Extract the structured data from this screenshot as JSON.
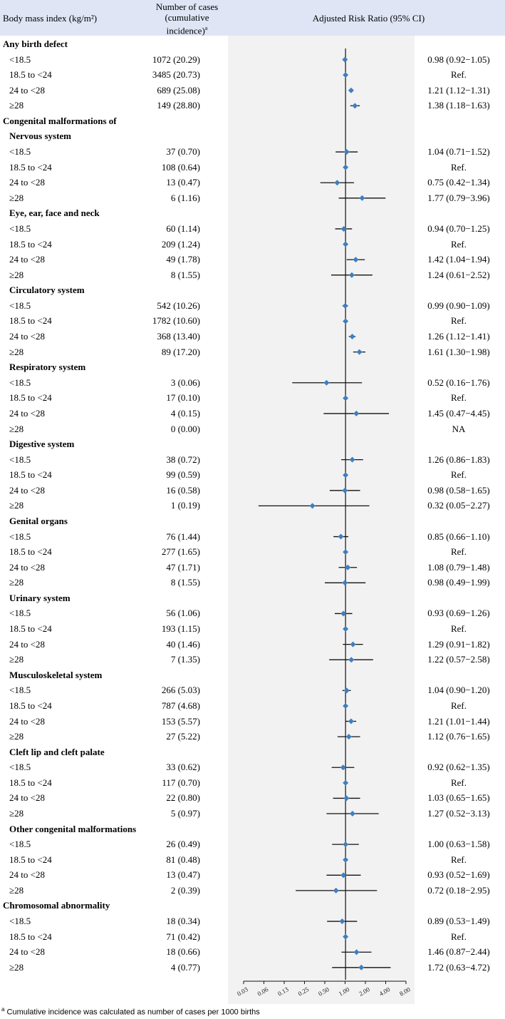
{
  "header": {
    "col1": "Body mass index (kg/m²)",
    "col2_line1": "Number of cases",
    "col2_line2": "(cumulative",
    "col2_line3": "incidence)",
    "col2_sup": "a",
    "col3": "Adjusted Risk Ratio (95%  CI)"
  },
  "footnote": {
    "sup": "a",
    "text": " Cumulative incidence was calculated as number of cases per 1000 births"
  },
  "colors": {
    "header_bg": "#dfe5f5",
    "plot_bg": "#f2f2f2",
    "marker": "#3f7fbf"
  },
  "chart_data": {
    "type": "forest",
    "xlabel": "Adjusted Risk Ratio (95%  CI)",
    "x_scale": "log2",
    "xlim": [
      0.03,
      8.0
    ],
    "reference_line": 1.0,
    "ticks": [
      "0.03",
      "0.06",
      "0.13",
      "0.25",
      "0.50",
      "1.00",
      "2.00",
      "4.00",
      "8.00"
    ],
    "rows": [
      {
        "kind": "group",
        "label": "Any birth defect"
      },
      {
        "kind": "data",
        "label": "<18.5",
        "cases": "1072 (20.29)",
        "rr": 0.98,
        "lo": 0.92,
        "hi": 1.05,
        "text": "0.98 (0.92−1.05)"
      },
      {
        "kind": "data",
        "label": "18.5 to <24",
        "cases": "3485 (20.73)",
        "rr": 1.0,
        "lo": 1.0,
        "hi": 1.0,
        "text": "Ref."
      },
      {
        "kind": "data",
        "label": "24 to <28",
        "cases": "689 (25.08)",
        "rr": 1.21,
        "lo": 1.12,
        "hi": 1.31,
        "text": "1.21 (1.12−1.31)"
      },
      {
        "kind": "data",
        "label": "≥28",
        "cases": "149 (28.80)",
        "rr": 1.38,
        "lo": 1.18,
        "hi": 1.63,
        "text": "1.38 (1.18−1.63)"
      },
      {
        "kind": "group",
        "label": "Congenital malformations of"
      },
      {
        "kind": "sub",
        "label": "Nervous system"
      },
      {
        "kind": "data",
        "label": "<18.5",
        "cases": "37 (0.70)",
        "rr": 1.04,
        "lo": 0.71,
        "hi": 1.52,
        "text": "1.04 (0.71−1.52)"
      },
      {
        "kind": "data",
        "label": "18.5 to <24",
        "cases": "108 (0.64)",
        "rr": 1.0,
        "lo": 1.0,
        "hi": 1.0,
        "text": "Ref."
      },
      {
        "kind": "data",
        "label": "24 to <28",
        "cases": "13 (0.47)",
        "rr": 0.75,
        "lo": 0.42,
        "hi": 1.34,
        "text": "0.75 (0.42−1.34)"
      },
      {
        "kind": "data",
        "label": "≥28",
        "cases": "6 (1.16)",
        "rr": 1.77,
        "lo": 0.79,
        "hi": 3.96,
        "text": "1.77 (0.79−3.96)"
      },
      {
        "kind": "sub",
        "label": "Eye, ear, face and neck"
      },
      {
        "kind": "data",
        "label": "<18.5",
        "cases": "60 (1.14)",
        "rr": 0.94,
        "lo": 0.7,
        "hi": 1.25,
        "text": "0.94 (0.70−1.25)"
      },
      {
        "kind": "data",
        "label": "18.5 to <24",
        "cases": "209 (1.24)",
        "rr": 1.0,
        "lo": 1.0,
        "hi": 1.0,
        "text": "Ref."
      },
      {
        "kind": "data",
        "label": "24 to <28",
        "cases": "49 (1.78)",
        "rr": 1.42,
        "lo": 1.04,
        "hi": 1.94,
        "text": "1.42 (1.04−1.94)"
      },
      {
        "kind": "data",
        "label": "≥28",
        "cases": "8 (1.55)",
        "rr": 1.24,
        "lo": 0.61,
        "hi": 2.52,
        "text": "1.24 (0.61−2.52)"
      },
      {
        "kind": "sub",
        "label": "Circulatory system"
      },
      {
        "kind": "data",
        "label": "<18.5",
        "cases": "542 (10.26)",
        "rr": 0.99,
        "lo": 0.9,
        "hi": 1.09,
        "text": "0.99 (0.90−1.09)"
      },
      {
        "kind": "data",
        "label": "18.5 to <24",
        "cases": "1782 (10.60)",
        "rr": 1.0,
        "lo": 1.0,
        "hi": 1.0,
        "text": "Ref."
      },
      {
        "kind": "data",
        "label": "24 to <28",
        "cases": "368 (13.40)",
        "rr": 1.26,
        "lo": 1.12,
        "hi": 1.41,
        "text": "1.26 (1.12−1.41)"
      },
      {
        "kind": "data",
        "label": "≥28",
        "cases": "89 (17.20)",
        "rr": 1.61,
        "lo": 1.3,
        "hi": 1.98,
        "text": "1.61 (1.30−1.98)"
      },
      {
        "kind": "sub",
        "label": "Respiratory system"
      },
      {
        "kind": "data",
        "label": "<18.5",
        "cases": "3 (0.06)",
        "rr": 0.52,
        "lo": 0.16,
        "hi": 1.76,
        "text": "0.52 (0.16−1.76)"
      },
      {
        "kind": "data",
        "label": "18.5 to <24",
        "cases": "17 (0.10)",
        "rr": 1.0,
        "lo": 1.0,
        "hi": 1.0,
        "text": "Ref."
      },
      {
        "kind": "data",
        "label": "24 to <28",
        "cases": "4 (0.15)",
        "rr": 1.45,
        "lo": 0.47,
        "hi": 4.45,
        "text": "1.45 (0.47−4.45)"
      },
      {
        "kind": "data",
        "label": "≥28",
        "cases": "0 (0.00)",
        "rr": null,
        "lo": null,
        "hi": null,
        "text": "NA"
      },
      {
        "kind": "sub",
        "label": "Digestive system"
      },
      {
        "kind": "data",
        "label": "<18.5",
        "cases": "38 (0.72)",
        "rr": 1.26,
        "lo": 0.86,
        "hi": 1.83,
        "text": "1.26 (0.86−1.83)"
      },
      {
        "kind": "data",
        "label": "18.5 to <24",
        "cases": "99 (0.59)",
        "rr": 1.0,
        "lo": 1.0,
        "hi": 1.0,
        "text": "Ref."
      },
      {
        "kind": "data",
        "label": "24 to <28",
        "cases": "16 (0.58)",
        "rr": 0.98,
        "lo": 0.58,
        "hi": 1.65,
        "text": "0.98 (0.58−1.65)"
      },
      {
        "kind": "data",
        "label": "≥28",
        "cases": "1 (0.19)",
        "rr": 0.32,
        "lo": 0.05,
        "hi": 2.27,
        "text": "0.32 (0.05−2.27)"
      },
      {
        "kind": "sub",
        "label": "Genital organs"
      },
      {
        "kind": "data",
        "label": "<18.5",
        "cases": "76 (1.44)",
        "rr": 0.85,
        "lo": 0.66,
        "hi": 1.1,
        "text": "0.85 (0.66−1.10)"
      },
      {
        "kind": "data",
        "label": "18.5 to <24",
        "cases": "277 (1.65)",
        "rr": 1.0,
        "lo": 1.0,
        "hi": 1.0,
        "text": "Ref."
      },
      {
        "kind": "data",
        "label": "24 to <28",
        "cases": "47 (1.71)",
        "rr": 1.08,
        "lo": 0.79,
        "hi": 1.48,
        "text": "1.08 (0.79−1.48)"
      },
      {
        "kind": "data",
        "label": "≥28",
        "cases": "8 (1.55)",
        "rr": 0.98,
        "lo": 0.49,
        "hi": 1.99,
        "text": "0.98 (0.49−1.99)"
      },
      {
        "kind": "sub",
        "label": "Urinary system"
      },
      {
        "kind": "data",
        "label": "<18.5",
        "cases": "56 (1.06)",
        "rr": 0.93,
        "lo": 0.69,
        "hi": 1.26,
        "text": "0.93 (0.69−1.26)"
      },
      {
        "kind": "data",
        "label": "18.5 to <24",
        "cases": "193 (1.15)",
        "rr": 1.0,
        "lo": 1.0,
        "hi": 1.0,
        "text": "Ref."
      },
      {
        "kind": "data",
        "label": "24 to <28",
        "cases": "40 (1.46)",
        "rr": 1.29,
        "lo": 0.91,
        "hi": 1.82,
        "text": "1.29 (0.91−1.82)"
      },
      {
        "kind": "data",
        "label": "≥28",
        "cases": "7 (1.35)",
        "rr": 1.22,
        "lo": 0.57,
        "hi": 2.58,
        "text": "1.22 (0.57−2.58)"
      },
      {
        "kind": "sub",
        "label": "Musculoskeletal system"
      },
      {
        "kind": "data",
        "label": "<18.5",
        "cases": "266 (5.03)",
        "rr": 1.04,
        "lo": 0.9,
        "hi": 1.2,
        "text": "1.04 (0.90−1.20)"
      },
      {
        "kind": "data",
        "label": "18.5 to <24",
        "cases": "787 (4.68)",
        "rr": 1.0,
        "lo": 1.0,
        "hi": 1.0,
        "text": "Ref."
      },
      {
        "kind": "data",
        "label": "24 to <28",
        "cases": "153 (5.57)",
        "rr": 1.21,
        "lo": 1.01,
        "hi": 1.44,
        "text": "1.21 (1.01−1.44)"
      },
      {
        "kind": "data",
        "label": "≥28",
        "cases": "27 (5.22)",
        "rr": 1.12,
        "lo": 0.76,
        "hi": 1.65,
        "text": "1.12 (0.76−1.65)"
      },
      {
        "kind": "sub",
        "label": "Cleft lip and cleft palate"
      },
      {
        "kind": "data",
        "label": "<18.5",
        "cases": "33 (0.62)",
        "rr": 0.92,
        "lo": 0.62,
        "hi": 1.35,
        "text": "0.92 (0.62−1.35)"
      },
      {
        "kind": "data",
        "label": "18.5 to <24",
        "cases": "117 (0.70)",
        "rr": 1.0,
        "lo": 1.0,
        "hi": 1.0,
        "text": "Ref."
      },
      {
        "kind": "data",
        "label": "24 to <28",
        "cases": "22 (0.80)",
        "rr": 1.03,
        "lo": 0.65,
        "hi": 1.65,
        "text": "1.03 (0.65−1.65)"
      },
      {
        "kind": "data",
        "label": "≥28",
        "cases": "5 (0.97)",
        "rr": 1.27,
        "lo": 0.52,
        "hi": 3.13,
        "text": "1.27 (0.52−3.13)"
      },
      {
        "kind": "sub",
        "label": "Other congenital malformations"
      },
      {
        "kind": "data",
        "label": "<18.5",
        "cases": "26 (0.49)",
        "rr": 1.0,
        "lo": 0.63,
        "hi": 1.58,
        "text": "1.00 (0.63−1.58)"
      },
      {
        "kind": "data",
        "label": "18.5 to <24",
        "cases": "81 (0.48)",
        "rr": 1.0,
        "lo": 1.0,
        "hi": 1.0,
        "text": "Ref."
      },
      {
        "kind": "data",
        "label": "24 to <28",
        "cases": "13 (0.47)",
        "rr": 0.93,
        "lo": 0.52,
        "hi": 1.69,
        "text": "0.93 (0.52−1.69)"
      },
      {
        "kind": "data",
        "label": "≥28",
        "cases": "2 (0.39)",
        "rr": 0.72,
        "lo": 0.18,
        "hi": 2.95,
        "text": "0.72 (0.18−2.95)"
      },
      {
        "kind": "group",
        "label": "Chromosomal abnormality"
      },
      {
        "kind": "data",
        "label": "<18.5",
        "cases": "18 (0.34)",
        "rr": 0.89,
        "lo": 0.53,
        "hi": 1.49,
        "text": "0.89 (0.53−1.49)"
      },
      {
        "kind": "data",
        "label": "18.5 to <24",
        "cases": "71 (0.42)",
        "rr": 1.0,
        "lo": 1.0,
        "hi": 1.0,
        "text": "Ref."
      },
      {
        "kind": "data",
        "label": "24 to <28",
        "cases": "18 (0.66)",
        "rr": 1.46,
        "lo": 0.87,
        "hi": 2.44,
        "text": "1.46 (0.87−2.44)"
      },
      {
        "kind": "data",
        "label": "≥28",
        "cases": "4 (0.77)",
        "rr": 1.72,
        "lo": 0.63,
        "hi": 4.72,
        "text": "1.72 (0.63−4.72)"
      }
    ]
  }
}
